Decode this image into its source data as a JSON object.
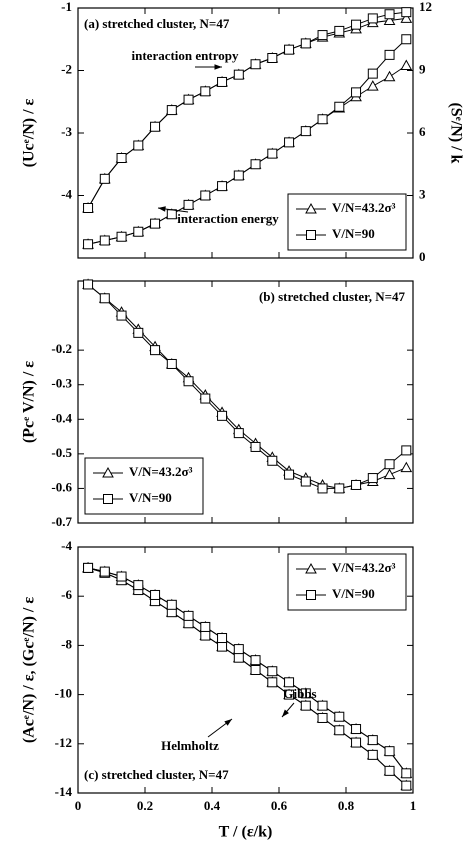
{
  "chart_data": [
    {
      "type": "line",
      "title": "(a) stretched cluster, N=47",
      "ylabel": "(Ucᵉ/N) / ε",
      "y2label": "(Sᵉ/N) / k",
      "x": [
        0.03,
        0.08,
        0.13,
        0.18,
        0.23,
        0.28,
        0.33,
        0.38,
        0.43,
        0.48,
        0.53,
        0.58,
        0.63,
        0.68,
        0.73,
        0.78,
        0.83,
        0.88,
        0.93,
        0.98
      ],
      "xlim": [
        0,
        1
      ],
      "xticks": [
        0,
        0.2,
        0.4,
        0.6,
        0.8,
        1
      ],
      "ylim": [
        -5,
        -1
      ],
      "yticks": [
        -4,
        -3,
        -2,
        -1
      ],
      "y2lim": [
        0,
        12
      ],
      "y2ticks": [
        0,
        3,
        6,
        9,
        12
      ],
      "legend": "lower right",
      "annotations": [
        "interaction entropy",
        "interaction energy"
      ],
      "series": [
        {
          "name": "V/N=43.2σ³",
          "marker": "triangle",
          "color": "#000000",
          "energy": [
            -4.78,
            -4.72,
            -4.66,
            -4.58,
            -4.45,
            -4.3,
            -4.15,
            -4.0,
            -3.85,
            -3.68,
            -3.5,
            -3.33,
            -3.15,
            -2.97,
            -2.78,
            -2.6,
            -2.42,
            -2.25,
            -2.1,
            -1.92
          ],
          "entropy": [
            2.4,
            3.8,
            4.8,
            5.4,
            6.3,
            7.1,
            7.6,
            8.0,
            8.45,
            8.8,
            9.3,
            9.6,
            10.0,
            10.3,
            10.6,
            10.8,
            11.0,
            11.3,
            11.4,
            11.5
          ]
        },
        {
          "name": "V/N=90",
          "marker": "square",
          "color": "#000000",
          "energy": [
            -4.78,
            -4.72,
            -4.66,
            -4.58,
            -4.45,
            -4.3,
            -4.15,
            -4.0,
            -3.85,
            -3.68,
            -3.5,
            -3.33,
            -3.15,
            -2.97,
            -2.78,
            -2.58,
            -2.35,
            -2.05,
            -1.75,
            -1.5
          ],
          "entropy": [
            2.4,
            3.8,
            4.8,
            5.4,
            6.3,
            7.1,
            7.6,
            8.0,
            8.45,
            8.8,
            9.3,
            9.6,
            10.0,
            10.3,
            10.7,
            10.9,
            11.2,
            11.5,
            11.7,
            11.8
          ]
        }
      ]
    },
    {
      "type": "line",
      "title": "(b) stretched cluster, N=47",
      "ylabel": "(Pcᵉ V/N) / ε",
      "x": [
        0.03,
        0.08,
        0.13,
        0.18,
        0.23,
        0.28,
        0.33,
        0.38,
        0.43,
        0.48,
        0.53,
        0.58,
        0.63,
        0.68,
        0.73,
        0.78,
        0.83,
        0.88,
        0.93,
        0.98
      ],
      "xlim": [
        0,
        1
      ],
      "xticks": [
        0,
        0.2,
        0.4,
        0.6,
        0.8,
        1
      ],
      "ylim": [
        -0.7,
        0
      ],
      "yticks": [
        -0.7,
        -0.6,
        -0.5,
        -0.4,
        -0.3,
        -0.2
      ],
      "legend": "lower left",
      "series": [
        {
          "name": "V/N=43.2σ³",
          "marker": "triangle",
          "color": "#000000",
          "values": [
            -0.01,
            -0.05,
            -0.09,
            -0.14,
            -0.19,
            -0.24,
            -0.28,
            -0.33,
            -0.38,
            -0.43,
            -0.47,
            -0.51,
            -0.55,
            -0.57,
            -0.59,
            -0.6,
            -0.59,
            -0.58,
            -0.56,
            -0.54
          ]
        },
        {
          "name": "V/N=90",
          "marker": "square",
          "color": "#000000",
          "values": [
            -0.01,
            -0.05,
            -0.1,
            -0.15,
            -0.2,
            -0.24,
            -0.29,
            -0.34,
            -0.39,
            -0.44,
            -0.48,
            -0.52,
            -0.56,
            -0.58,
            -0.6,
            -0.6,
            -0.59,
            -0.57,
            -0.53,
            -0.49
          ]
        }
      ]
    },
    {
      "type": "line",
      "title": "(c) stretched cluster, N=47",
      "ylabel": "(Acᵉ/N) / ε, (Gcᵉ/N) / ε",
      "xlabel": "T / (ε/k)",
      "x": [
        0.03,
        0.08,
        0.13,
        0.18,
        0.23,
        0.28,
        0.33,
        0.38,
        0.43,
        0.48,
        0.53,
        0.58,
        0.63,
        0.68,
        0.73,
        0.78,
        0.83,
        0.88,
        0.93,
        0.98
      ],
      "xlim": [
        0,
        1
      ],
      "xticks": [
        0,
        0.2,
        0.4,
        0.6,
        0.8,
        1
      ],
      "ylim": [
        -14,
        -4
      ],
      "yticks": [
        -14,
        -12,
        -10,
        -8,
        -6,
        -4
      ],
      "legend": "upper right",
      "annotations": [
        "Gibbs",
        "Helmholtz"
      ],
      "series": [
        {
          "name": "V/N=43.2σ³",
          "marker": "triangle",
          "color": "#000000",
          "helmholtz": [
            -4.85,
            -5.05,
            -5.35,
            -5.75,
            -6.2,
            -6.65,
            -7.1,
            -7.6,
            -8.05,
            -8.5,
            -9.0,
            -9.5,
            -10.0,
            -10.45,
            -10.95,
            -11.45,
            -11.95,
            -12.45,
            -13.1,
            -13.7
          ],
          "gibbs": [
            -4.85,
            -5.0,
            -5.2,
            -5.55,
            -5.95,
            -6.35,
            -6.8,
            -7.25,
            -7.7,
            -8.15,
            -8.6,
            -9.05,
            -9.5,
            -9.95,
            -10.45,
            -10.9,
            -11.4,
            -11.85,
            -12.3,
            -13.2
          ]
        },
        {
          "name": "V/N=90",
          "marker": "square",
          "color": "#000000",
          "helmholtz": [
            -4.85,
            -5.05,
            -5.35,
            -5.75,
            -6.2,
            -6.65,
            -7.1,
            -7.6,
            -8.05,
            -8.5,
            -9.0,
            -9.5,
            -10.0,
            -10.45,
            -10.95,
            -11.45,
            -11.95,
            -12.45,
            -13.1,
            -13.7
          ],
          "gibbs": [
            -4.85,
            -5.0,
            -5.2,
            -5.55,
            -5.95,
            -6.35,
            -6.8,
            -7.25,
            -7.7,
            -8.15,
            -8.6,
            -9.05,
            -9.5,
            -9.95,
            -10.45,
            -10.9,
            -11.4,
            -11.85,
            -12.3,
            -13.2
          ]
        }
      ]
    }
  ]
}
